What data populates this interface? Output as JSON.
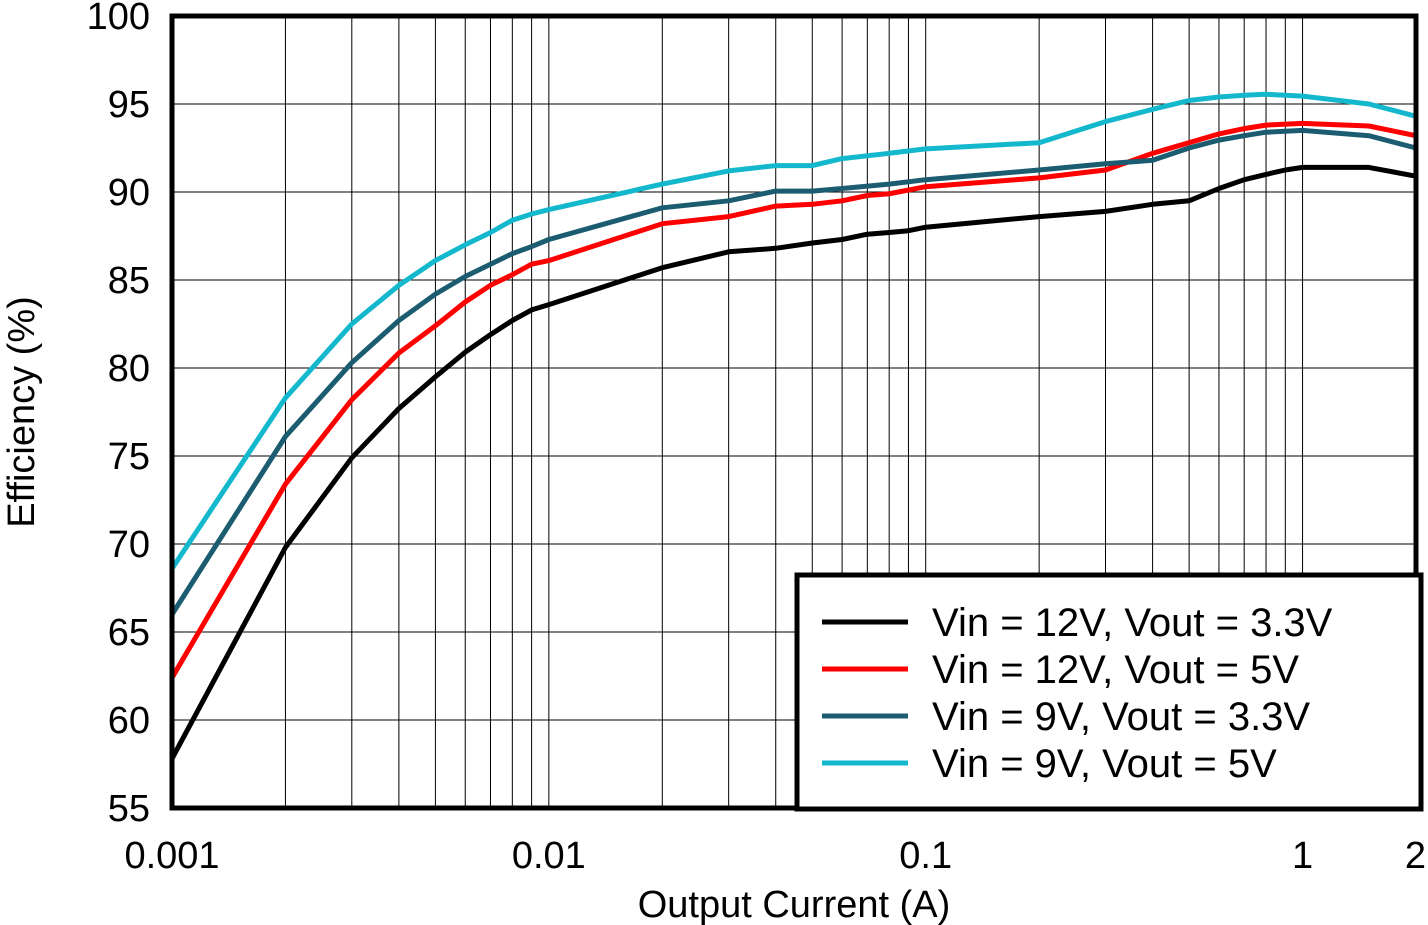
{
  "chart_data": {
    "type": "line",
    "xlabel": "Output Current (A)",
    "ylabel": "Efficiency (%)",
    "xscale": "log",
    "xlim": [
      0.001,
      2
    ],
    "ylim": [
      55,
      100
    ],
    "x_ticks": [
      0.001,
      0.01,
      0.1,
      1,
      2
    ],
    "x_tick_labels": [
      "0.001",
      "0.01",
      "0.1",
      "1",
      "2"
    ],
    "y_ticks": [
      55,
      60,
      65,
      70,
      75,
      80,
      85,
      90,
      95,
      100
    ],
    "y_tick_labels": [
      "55",
      "60",
      "65",
      "70",
      "75",
      "80",
      "85",
      "90",
      "95",
      "100"
    ],
    "grid": true,
    "legend_position": "bottom-right",
    "series": [
      {
        "name": "Vin = 12V, Vout = 3.3V",
        "color": "#000000",
        "x": [
          0.001,
          0.002,
          0.003,
          0.004,
          0.005,
          0.006,
          0.007,
          0.008,
          0.009,
          0.01,
          0.02,
          0.03,
          0.04,
          0.05,
          0.06,
          0.07,
          0.08,
          0.09,
          0.1,
          0.2,
          0.3,
          0.4,
          0.5,
          0.6,
          0.7,
          0.8,
          0.9,
          1.0,
          1.5,
          2
        ],
        "y": [
          57.8,
          69.8,
          74.9,
          77.7,
          79.5,
          80.9,
          81.9,
          82.7,
          83.3,
          83.6,
          85.7,
          86.6,
          86.8,
          87.1,
          87.3,
          87.6,
          87.7,
          87.8,
          88.0,
          88.6,
          88.9,
          89.3,
          89.5,
          90.2,
          90.7,
          91.0,
          91.25,
          91.4,
          91.4,
          90.9
        ]
      },
      {
        "name": "Vin = 12V, Vout = 5V",
        "color": "#ff0000",
        "x": [
          0.001,
          0.002,
          0.003,
          0.004,
          0.005,
          0.006,
          0.007,
          0.008,
          0.009,
          0.01,
          0.02,
          0.03,
          0.04,
          0.05,
          0.06,
          0.07,
          0.08,
          0.1,
          0.2,
          0.3,
          0.4,
          0.5,
          0.6,
          0.7,
          0.8,
          1.0,
          1.5,
          2
        ],
        "y": [
          62.4,
          73.4,
          78.2,
          80.85,
          82.4,
          83.75,
          84.7,
          85.3,
          85.9,
          86.1,
          88.2,
          88.6,
          89.2,
          89.3,
          89.5,
          89.8,
          89.9,
          90.3,
          90.8,
          91.25,
          92.2,
          92.8,
          93.3,
          93.6,
          93.8,
          93.9,
          93.75,
          93.2
        ]
      },
      {
        "name": "Vin = 9V, Vout = 3.3V",
        "color": "#1b5c70",
        "x": [
          0.001,
          0.002,
          0.003,
          0.004,
          0.005,
          0.006,
          0.007,
          0.008,
          0.009,
          0.01,
          0.02,
          0.03,
          0.04,
          0.05,
          0.06,
          0.08,
          0.1,
          0.2,
          0.3,
          0.4,
          0.5,
          0.6,
          0.7,
          0.8,
          1.0,
          1.5,
          2
        ],
        "y": [
          66.0,
          76.1,
          80.3,
          82.7,
          84.2,
          85.2,
          85.9,
          86.5,
          86.9,
          87.3,
          89.1,
          89.5,
          90.05,
          90.05,
          90.2,
          90.45,
          90.7,
          91.25,
          91.6,
          91.8,
          92.5,
          92.95,
          93.2,
          93.4,
          93.5,
          93.2,
          92.5
        ]
      },
      {
        "name": "Vin = 9V, Vout = 5V",
        "color": "#14b8cc",
        "x": [
          0.001,
          0.002,
          0.003,
          0.004,
          0.005,
          0.006,
          0.007,
          0.008,
          0.009,
          0.01,
          0.02,
          0.03,
          0.04,
          0.05,
          0.06,
          0.08,
          0.1,
          0.2,
          0.3,
          0.4,
          0.5,
          0.6,
          0.7,
          0.8,
          1.0,
          1.5,
          2
        ],
        "y": [
          68.6,
          78.3,
          82.5,
          84.7,
          86.1,
          87.0,
          87.7,
          88.4,
          88.75,
          89.0,
          90.45,
          91.2,
          91.5,
          91.5,
          91.9,
          92.2,
          92.45,
          92.8,
          94.0,
          94.7,
          95.2,
          95.4,
          95.5,
          95.55,
          95.45,
          95.0,
          94.3
        ]
      }
    ]
  }
}
